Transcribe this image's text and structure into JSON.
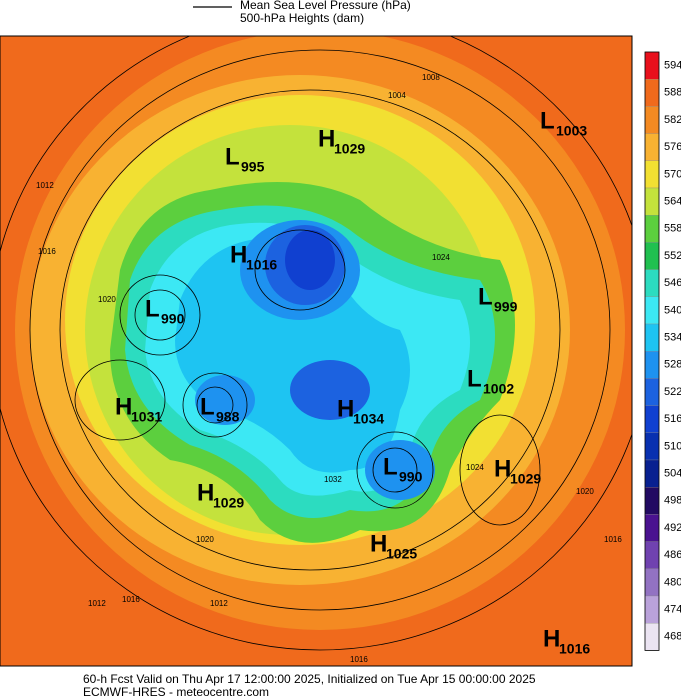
{
  "header": {
    "mslp_label": "Mean Sea Level Pressure (hPa)",
    "heights_label": "500-hPa Heights (dam)"
  },
  "centers": [
    {
      "kind": "L",
      "value": 1003
    },
    {
      "kind": "H",
      "value": 1029
    },
    {
      "kind": "L",
      "value": 995
    },
    {
      "kind": "H",
      "value": 1016
    },
    {
      "kind": "L",
      "value": 990
    },
    {
      "kind": "L",
      "value": 999
    },
    {
      "kind": "L",
      "value": 1002
    },
    {
      "kind": "H",
      "value": 1031
    },
    {
      "kind": "L",
      "value": 988
    },
    {
      "kind": "H",
      "value": 1034
    },
    {
      "kind": "L",
      "value": 990
    },
    {
      "kind": "H",
      "value": 1029
    },
    {
      "kind": "H",
      "value": 1029
    },
    {
      "kind": "H",
      "value": 1025
    },
    {
      "kind": "H",
      "value": 1016
    }
  ],
  "isobar_labels": [
    1008,
    1004,
    1012,
    1016,
    1020,
    1024,
    1020,
    1012,
    1016,
    1024,
    1020,
    1016,
    1012,
    1016,
    1032
  ],
  "colorbar": [
    {
      "value": 594,
      "color": "#e8101c"
    },
    {
      "value": 588,
      "color": "#f06a1c"
    },
    {
      "value": 582,
      "color": "#f48a22"
    },
    {
      "value": 576,
      "color": "#f8b232"
    },
    {
      "value": 570,
      "color": "#f2e032"
    },
    {
      "value": 564,
      "color": "#c4e23c"
    },
    {
      "value": 558,
      "color": "#5ccf3e"
    },
    {
      "value": 552,
      "color": "#20c050"
    },
    {
      "value": 546,
      "color": "#2cdcc0"
    },
    {
      "value": 540,
      "color": "#3ce8f4"
    },
    {
      "value": 534,
      "color": "#1ec4f2"
    },
    {
      "value": 528,
      "color": "#1e92f0"
    },
    {
      "value": 522,
      "color": "#1c62e0"
    },
    {
      "value": 516,
      "color": "#1040d0"
    },
    {
      "value": 510,
      "color": "#0830b0"
    },
    {
      "value": 504,
      "color": "#082090"
    },
    {
      "value": 498,
      "color": "#220a62"
    },
    {
      "value": 492,
      "color": "#4a1290"
    },
    {
      "value": 486,
      "color": "#7042b0"
    },
    {
      "value": 480,
      "color": "#9272c2"
    },
    {
      "value": 474,
      "color": "#baa2da"
    },
    {
      "value": 468,
      "color": "#ebe4f2"
    }
  ],
  "footer": {
    "valid": "60-h Fcst Valid on Thu Apr 17 12:00:00 2025, Initialized on Tue Apr 15 00:00:00 2025",
    "source": "ECMWF-HRES - meteocentre.com"
  }
}
